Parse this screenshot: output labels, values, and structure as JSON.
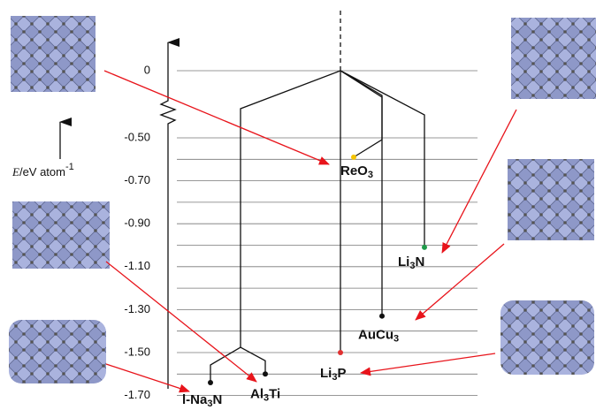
{
  "axis": {
    "quantity": "E",
    "unit": "/eV  atom",
    "exponent": "-1",
    "ylim": [
      0,
      -1.7
    ],
    "yticks": [
      {
        "value": 0,
        "label": "0"
      },
      {
        "value": -0.5,
        "label": "-0.50"
      },
      {
        "value": -0.7,
        "label": "-0.70"
      },
      {
        "value": -0.9,
        "label": "-0.90"
      },
      {
        "value": -1.1,
        "label": "-1.10"
      },
      {
        "value": -1.3,
        "label": "-1.30"
      },
      {
        "value": -1.5,
        "label": "-1.50"
      },
      {
        "value": -1.7,
        "label": "-1.70"
      }
    ],
    "gridlines": [
      0,
      -0.5,
      -0.6,
      -0.7,
      -0.8,
      -0.9,
      -1.0,
      -1.1,
      -1.2,
      -1.3,
      -1.4,
      -1.5,
      -1.6,
      -1.7
    ]
  },
  "structures": [
    {
      "label": "ReO3",
      "energy": -0.59,
      "color": "#f5c400"
    },
    {
      "label": "Li3N",
      "energy": -1.01,
      "color": "#1f9a4a"
    },
    {
      "label": "AuCu3",
      "energy": -1.33,
      "color": "#111111"
    },
    {
      "label": "Li3P",
      "energy": -1.5,
      "color": "#e03030"
    },
    {
      "label": "l-Na3N",
      "energy": -1.64,
      "color": "#111111"
    },
    {
      "label": "Al3Ti",
      "energy": -1.6,
      "color": "#111111"
    }
  ]
}
